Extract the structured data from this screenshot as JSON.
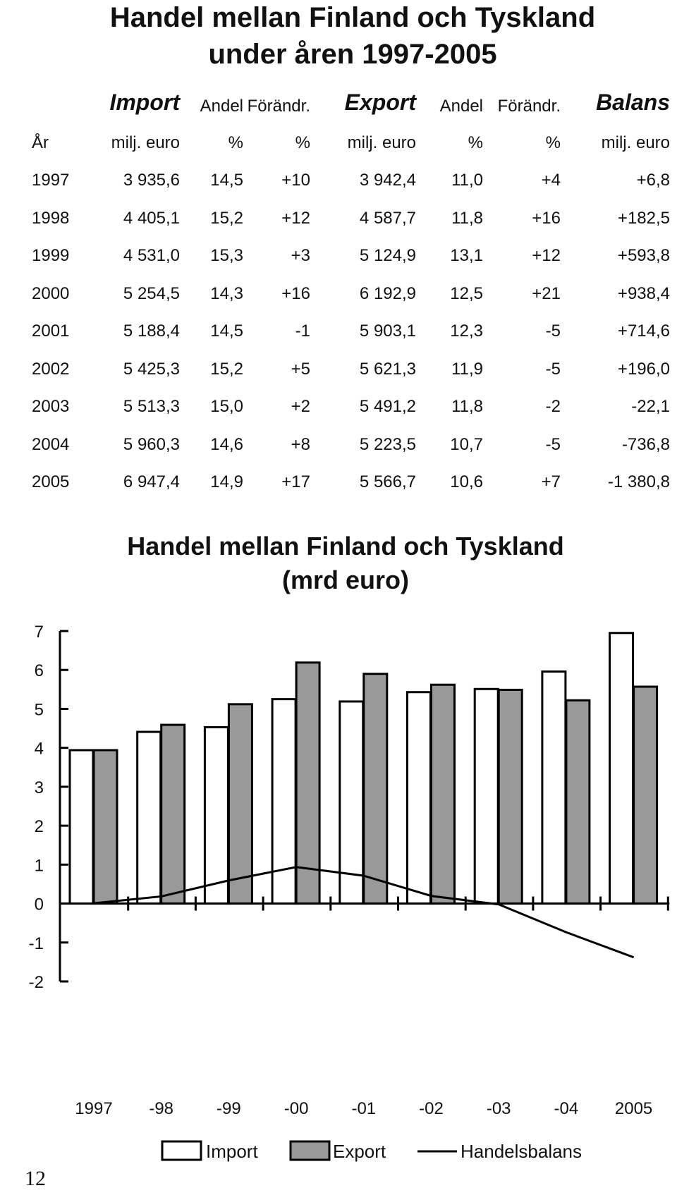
{
  "table": {
    "title_line1": "Handel mellan Finland och Tyskland",
    "title_line2": "under åren 1997-2005",
    "header1": [
      "",
      "Import",
      "Andel",
      "Förändr.",
      "Export",
      "Andel",
      "Förändr.",
      "Balans"
    ],
    "header2": [
      "År",
      "milj. euro",
      "%",
      "%",
      "milj. euro",
      "%",
      "%",
      "milj. euro"
    ],
    "rows": [
      [
        "1997",
        "3 935,6",
        "14,5",
        "+10",
        "3 942,4",
        "11,0",
        "+4",
        "+6,8"
      ],
      [
        "1998",
        "4 405,1",
        "15,2",
        "+12",
        "4 587,7",
        "11,8",
        "+16",
        "+182,5"
      ],
      [
        "1999",
        "4 531,0",
        "15,3",
        "+3",
        "5 124,9",
        "13,1",
        "+12",
        "+593,8"
      ],
      [
        "2000",
        "5 254,5",
        "14,3",
        "+16",
        "6 192,9",
        "12,5",
        "+21",
        "+938,4"
      ],
      [
        "2001",
        "5 188,4",
        "14,5",
        "-1",
        "5 903,1",
        "12,3",
        "-5",
        "+714,6"
      ],
      [
        "2002",
        "5 425,3",
        "15,2",
        "+5",
        "5 621,3",
        "11,9",
        "-5",
        "+196,0"
      ],
      [
        "2003",
        "5 513,3",
        "15,0",
        "+2",
        "5 491,2",
        "11,8",
        "-2",
        "-22,1"
      ],
      [
        "2004",
        "5 960,3",
        "14,6",
        "+8",
        "5 223,5",
        "10,7",
        "-5",
        "-736,8"
      ],
      [
        "2005",
        "6 947,4",
        "14,9",
        "+17",
        "5 566,7",
        "10,6",
        "+7",
        "-1 380,8"
      ]
    ]
  },
  "chart_data": {
    "type": "bar",
    "title": "Handel mellan Finland och Tyskland",
    "subtitle": "(mrd euro)",
    "categories": [
      "1997",
      "-98",
      "-99",
      "-00",
      "-01",
      "-02",
      "-03",
      "-04",
      "2005"
    ],
    "series": [
      {
        "name": "Import",
        "kind": "bar",
        "color": "#ffffff",
        "values": [
          3.94,
          4.41,
          4.53,
          5.25,
          5.19,
          5.43,
          5.51,
          5.96,
          6.95
        ]
      },
      {
        "name": "Export",
        "kind": "bar",
        "color": "#999999",
        "values": [
          3.94,
          4.59,
          5.12,
          6.19,
          5.9,
          5.62,
          5.49,
          5.22,
          5.57
        ]
      },
      {
        "name": "Handelsbalans",
        "kind": "line",
        "color": "#000000",
        "values": [
          0.007,
          0.183,
          0.594,
          0.938,
          0.715,
          0.196,
          -0.022,
          -0.737,
          -1.381
        ]
      }
    ],
    "ylim": [
      -2,
      7
    ],
    "yticks": [
      "-2",
      "-1",
      "0",
      "1",
      "2",
      "3",
      "4",
      "5",
      "6",
      "7"
    ],
    "legend_position": "bottom",
    "grid": false
  },
  "page_number": "12"
}
